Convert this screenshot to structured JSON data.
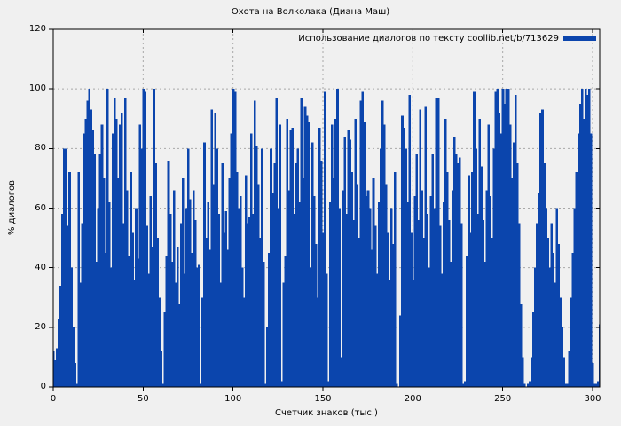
{
  "chart_data": {
    "type": "bar",
    "title": "Охота на Волколака (Диана Маш)",
    "xlabel": "Счетчик знаков (тыс.)",
    "ylabel": "% диалогов",
    "legend": "Использование диалогов по тексту coollib.net/b/713629",
    "legend_position": "top-right-inside",
    "xlim": [
      0,
      305
    ],
    "ylim": [
      0,
      120
    ],
    "xticks": [
      0,
      50,
      100,
      150,
      200,
      250,
      300
    ],
    "yticks": [
      0,
      20,
      40,
      60,
      80,
      100,
      120
    ],
    "grid": "dashed",
    "bar_color": "#0b45ad",
    "grid_color": "#a8a8a8",
    "frame_color": "#000000",
    "background": "#f0f0f0",
    "x_start": 0,
    "x_step": 1,
    "values": [
      12,
      9,
      13,
      23,
      34,
      58,
      80,
      80,
      54,
      72,
      40,
      20,
      8,
      1,
      72,
      35,
      55,
      85,
      90,
      96,
      100,
      93,
      86,
      78,
      42,
      60,
      78,
      88,
      70,
      45,
      100,
      62,
      40,
      85,
      97,
      90,
      70,
      88,
      92,
      55,
      97,
      66,
      44,
      72,
      52,
      36,
      60,
      43,
      88,
      80,
      100,
      99,
      54,
      38,
      64,
      47,
      100,
      75,
      50,
      30,
      12,
      1,
      25,
      44,
      76,
      58,
      42,
      66,
      35,
      47,
      28,
      55,
      70,
      38,
      60,
      80,
      63,
      45,
      66,
      56,
      40,
      41,
      1,
      30,
      82,
      50,
      62,
      46,
      93,
      68,
      92,
      80,
      58,
      35,
      75,
      52,
      59,
      46,
      70,
      85,
      100,
      99,
      72,
      60,
      64,
      40,
      30,
      71,
      55,
      57,
      85,
      58,
      96,
      81,
      68,
      50,
      80,
      42,
      1,
      20,
      45,
      80,
      65,
      75,
      97,
      60,
      88,
      2,
      35,
      44,
      90,
      66,
      86,
      87,
      58,
      75,
      80,
      62,
      97,
      70,
      94,
      91,
      89,
      40,
      82,
      64,
      48,
      30,
      87,
      76,
      52,
      99,
      38,
      2,
      62,
      88,
      70,
      90,
      100,
      60,
      10,
      66,
      84,
      58,
      86,
      83,
      72,
      56,
      90,
      68,
      50,
      96,
      99,
      89,
      64,
      66,
      60,
      46,
      70,
      54,
      38,
      62,
      80,
      96,
      88,
      68,
      52,
      36,
      60,
      48,
      72,
      1,
      0,
      24,
      91,
      87,
      80,
      62,
      98,
      52,
      36,
      64,
      78,
      56,
      93,
      66,
      50,
      94,
      58,
      40,
      64,
      78,
      60,
      97,
      97,
      54,
      38,
      62,
      90,
      72,
      56,
      42,
      66,
      84,
      78,
      75,
      77,
      55,
      1,
      2,
      44,
      71,
      52,
      72,
      99,
      80,
      58,
      90,
      74,
      56,
      42,
      66,
      88,
      64,
      50,
      80,
      99,
      100,
      92,
      85,
      100,
      95,
      100,
      100,
      88,
      70,
      82,
      98,
      75,
      55,
      28,
      10,
      1,
      0,
      1,
      2,
      10,
      25,
      40,
      55,
      65,
      92,
      93,
      75,
      60,
      50,
      40,
      55,
      45,
      35,
      60,
      48,
      30,
      20,
      10,
      1,
      1,
      12,
      30,
      45,
      60,
      72,
      85,
      95,
      100,
      90,
      100,
      98,
      100,
      85,
      8,
      1,
      1,
      2,
      21
    ]
  }
}
